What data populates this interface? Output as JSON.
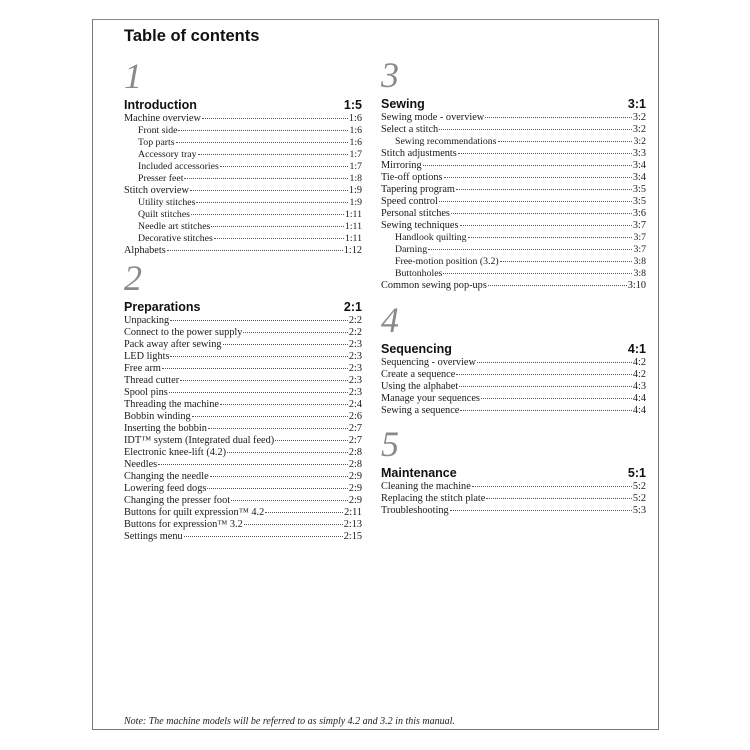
{
  "title": "Table of contents",
  "sections": [
    {
      "number": "1",
      "heading": "Introduction",
      "page": "1:5",
      "entries": [
        {
          "label": "Machine overview",
          "page": "1:6",
          "level": 1
        },
        {
          "label": "Front side",
          "page": "1:6",
          "level": 2
        },
        {
          "label": "Top parts",
          "page": "1:6",
          "level": 2
        },
        {
          "label": "Accessory tray",
          "page": "1:7",
          "level": 2
        },
        {
          "label": "Included accessories",
          "page": "1:7",
          "level": 2
        },
        {
          "label": "Presser feet",
          "page": "1:8",
          "level": 2
        },
        {
          "label": "Stitch overview",
          "page": "1:9",
          "level": 1
        },
        {
          "label": "Utility stitches",
          "page": "1:9",
          "level": 2
        },
        {
          "label": "Quilt stitches",
          "page": "1:11",
          "level": 2
        },
        {
          "label": "Needle art stitches",
          "page": "1:11",
          "level": 2
        },
        {
          "label": "Decorative stitches",
          "page": "1:11",
          "level": 2
        },
        {
          "label": "Alphabets",
          "page": "1:12",
          "level": 1
        }
      ]
    },
    {
      "number": "2",
      "heading": "Preparations",
      "page": "2:1",
      "entries": [
        {
          "label": "Unpacking",
          "page": "2:2",
          "level": 1
        },
        {
          "label": "Connect to the power supply",
          "page": "2:2",
          "level": 1
        },
        {
          "label": "Pack away after sewing",
          "page": "2:3",
          "level": 1
        },
        {
          "label": "LED lights",
          "page": "2:3",
          "level": 1
        },
        {
          "label": "Free arm",
          "page": "2:3",
          "level": 1
        },
        {
          "label": "Thread cutter",
          "page": "2:3",
          "level": 1
        },
        {
          "label": "Spool pins",
          "page": "2:3",
          "level": 1
        },
        {
          "label": "Threading the machine",
          "page": "2:4",
          "level": 1
        },
        {
          "label": "Bobbin winding",
          "page": "2:6",
          "level": 1
        },
        {
          "label": "Inserting the bobbin",
          "page": "2:7",
          "level": 1
        },
        {
          "label": "IDT™ system (Integrated dual feed)",
          "page": "2:7",
          "level": 1
        },
        {
          "label": "Electronic knee-lift (4.2)",
          "page": "2:8",
          "level": 1
        },
        {
          "label": "Needles",
          "page": "2:8",
          "level": 1
        },
        {
          "label": "Changing the needle",
          "page": "2:9",
          "level": 1
        },
        {
          "label": "Lowering feed dogs",
          "page": "2:9",
          "level": 1
        },
        {
          "label": "Changing the presser foot",
          "page": "2:9",
          "level": 1
        },
        {
          "label": "Buttons for quilt expression™ 4.2",
          "page": "2:11",
          "level": 1
        },
        {
          "label": "Buttons for expression™ 3.2",
          "page": "2:13",
          "level": 1
        },
        {
          "label": "Settings menu",
          "page": "2:15",
          "level": 1
        }
      ]
    },
    {
      "number": "3",
      "heading": "Sewing",
      "page": "3:1",
      "entries": [
        {
          "label": "Sewing mode - overview",
          "page": "3:2",
          "level": 1
        },
        {
          "label": "Select a stitch",
          "page": "3:2",
          "level": 1
        },
        {
          "label": "Sewing recommendations",
          "page": "3:2",
          "level": 2
        },
        {
          "label": "Stitch adjustments",
          "page": "3:3",
          "level": 1
        },
        {
          "label": "Mirroring",
          "page": "3:4",
          "level": 1
        },
        {
          "label": "Tie-off options",
          "page": "3:4",
          "level": 1
        },
        {
          "label": "Tapering program",
          "page": "3:5",
          "level": 1
        },
        {
          "label": "Speed control",
          "page": "3:5",
          "level": 1
        },
        {
          "label": "Personal stitches",
          "page": "3:6",
          "level": 1
        },
        {
          "label": "Sewing techniques",
          "page": "3:7",
          "level": 1
        },
        {
          "label": "Handlook quilting",
          "page": "3:7",
          "level": 2
        },
        {
          "label": "Darning",
          "page": "3:7",
          "level": 2
        },
        {
          "label": "Free-motion position (3.2)",
          "page": "3:8",
          "level": 2
        },
        {
          "label": "Buttonholes",
          "page": "3:8",
          "level": 2
        },
        {
          "label": "Common sewing pop-ups",
          "page": "3:10",
          "level": 1
        }
      ]
    },
    {
      "number": "4",
      "heading": "Sequencing",
      "page": "4:1",
      "entries": [
        {
          "label": "Sequencing - overview",
          "page": "4:2",
          "level": 1
        },
        {
          "label": "Create a sequence",
          "page": "4:2",
          "level": 1
        },
        {
          "label": "Using the alphabet",
          "page": "4:3",
          "level": 1
        },
        {
          "label": "Manage your sequences",
          "page": "4:4",
          "level": 1
        },
        {
          "label": "Sewing a sequence",
          "page": "4:4",
          "level": 1
        }
      ]
    },
    {
      "number": "5",
      "heading": "Maintenance",
      "page": "5:1",
      "entries": [
        {
          "label": "Cleaning the machine",
          "page": "5:2",
          "level": 1
        },
        {
          "label": "Replacing the stitch plate",
          "page": "5:2",
          "level": 1
        },
        {
          "label": "Troubleshooting",
          "page": "5:3",
          "level": 1
        }
      ]
    }
  ],
  "note": "Note: The machine models will be referred to as simply 4.2 and 3.2 in this manual."
}
